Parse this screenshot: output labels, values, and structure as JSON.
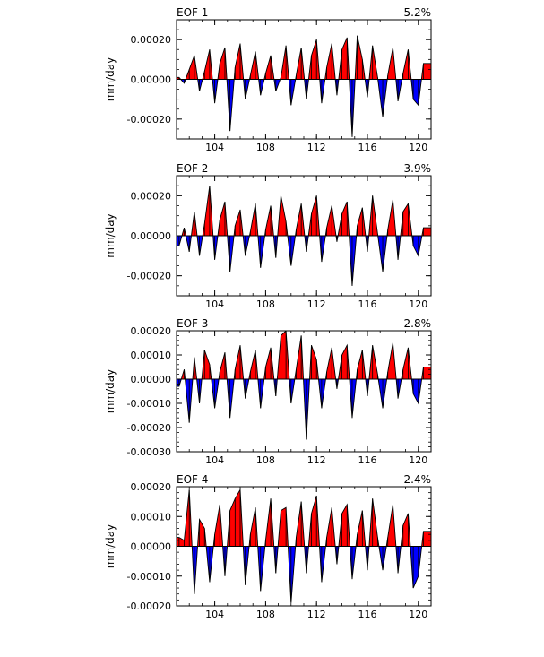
{
  "chart_data": [
    {
      "type": "area",
      "title": "EOF 1",
      "percent_label": "5.2%",
      "ylabel": "mm/day",
      "xlim": [
        101.0,
        121.0
      ],
      "ylim": [
        -0.0003,
        0.0003
      ],
      "x_ticks": [
        104,
        108,
        112,
        116,
        120
      ],
      "y_ticks": [
        "0.00020",
        "0.00000",
        "-0.00020"
      ],
      "y_tick_values": [
        0.0002,
        0.0,
        -0.0002
      ],
      "positive_color": "#ff0000",
      "negative_color": "#0000ff",
      "x": [
        101.2,
        101.6,
        102.0,
        102.4,
        102.8,
        103.2,
        103.6,
        104.0,
        104.4,
        104.8,
        105.2,
        105.6,
        106.0,
        106.4,
        106.8,
        107.2,
        107.6,
        108.0,
        108.4,
        108.8,
        109.2,
        109.6,
        110.0,
        110.4,
        110.8,
        111.2,
        111.6,
        112.0,
        112.4,
        112.8,
        113.2,
        113.6,
        114.0,
        114.4,
        114.8,
        115.2,
        115.6,
        116.0,
        116.4,
        116.8,
        117.2,
        117.6,
        118.0,
        118.4,
        118.8,
        119.2,
        119.6,
        120.0,
        120.4
      ],
      "y": [
        1e-05,
        -2e-05,
        5e-05,
        0.00012,
        -6e-05,
        4e-05,
        0.00015,
        -0.00012,
        8e-05,
        0.00016,
        -0.00026,
        6e-05,
        0.00018,
        -0.0001,
        2e-05,
        0.00014,
        -8e-05,
        3e-05,
        0.00012,
        -6e-05,
        1e-05,
        0.00017,
        -0.00013,
        2e-05,
        0.00016,
        -0.0001,
        0.00012,
        0.0002,
        -0.00012,
        6e-05,
        0.00018,
        -8e-05,
        0.00015,
        0.00021,
        -0.00029,
        0.00022,
        0.0001,
        -9e-05,
        0.00017,
        1e-05,
        -0.00019,
        2e-05,
        0.00016,
        -0.00011,
        3e-05,
        0.00015,
        -0.0001,
        -0.00013,
        8e-05
      ]
    },
    {
      "type": "area",
      "title": "EOF 2",
      "percent_label": "3.9%",
      "ylabel": "mm/day",
      "xlim": [
        101.0,
        121.0
      ],
      "ylim": [
        -0.0003,
        0.0003
      ],
      "x_ticks": [
        104,
        108,
        112,
        116,
        120
      ],
      "y_ticks": [
        "0.00020",
        "0.00000",
        "-0.00020"
      ],
      "y_tick_values": [
        0.0002,
        0.0,
        -0.0002
      ],
      "positive_color": "#ff0000",
      "negative_color": "#0000ff",
      "x": [
        101.2,
        101.6,
        102.0,
        102.4,
        102.8,
        103.2,
        103.6,
        104.0,
        104.4,
        104.8,
        105.2,
        105.6,
        106.0,
        106.4,
        106.8,
        107.2,
        107.6,
        108.0,
        108.4,
        108.8,
        109.2,
        109.6,
        110.0,
        110.4,
        110.8,
        111.2,
        111.6,
        112.0,
        112.4,
        112.8,
        113.2,
        113.6,
        114.0,
        114.4,
        114.8,
        115.2,
        115.6,
        116.0,
        116.4,
        116.8,
        117.2,
        117.6,
        118.0,
        118.4,
        118.8,
        119.2,
        119.6,
        120.0,
        120.4
      ],
      "y": [
        -5e-05,
        4e-05,
        -8e-05,
        0.00012,
        -0.0001,
        6e-05,
        0.00025,
        -0.00012,
        8e-05,
        0.00017,
        -0.00018,
        5e-05,
        0.00013,
        -0.0001,
        2e-05,
        0.00016,
        -0.00016,
        3e-05,
        0.00015,
        -0.00011,
        0.0002,
        7e-05,
        -0.00015,
        3e-05,
        0.00016,
        -8e-05,
        0.00011,
        0.0002,
        -0.00013,
        4e-05,
        0.00015,
        -3e-05,
        0.00011,
        0.00017,
        -0.00025,
        5e-05,
        0.00014,
        -8e-05,
        0.0002,
        1e-05,
        -0.00018,
        3e-05,
        0.00018,
        -0.00012,
        0.00012,
        0.00016,
        -5e-05,
        -0.0001,
        4e-05
      ]
    },
    {
      "type": "area",
      "title": "EOF 3",
      "percent_label": "2.8%",
      "ylabel": "mm/day",
      "xlim": [
        101.0,
        121.0
      ],
      "ylim": [
        -0.0003,
        0.0002
      ],
      "x_ticks": [
        104,
        108,
        112,
        116,
        120
      ],
      "y_ticks": [
        "0.00020",
        "0.00010",
        "0.00000",
        "-0.00010",
        "-0.00020",
        "-0.00030"
      ],
      "y_tick_values": [
        0.0002,
        0.0001,
        0.0,
        -0.0001,
        -0.0002,
        -0.0003
      ],
      "positive_color": "#ff0000",
      "negative_color": "#0000ff",
      "x": [
        101.2,
        101.6,
        102.0,
        102.4,
        102.8,
        103.2,
        103.6,
        104.0,
        104.4,
        104.8,
        105.2,
        105.6,
        106.0,
        106.4,
        106.8,
        107.2,
        107.6,
        108.0,
        108.4,
        108.8,
        109.2,
        109.6,
        110.0,
        110.4,
        110.8,
        111.2,
        111.6,
        112.0,
        112.4,
        112.8,
        113.2,
        113.6,
        114.0,
        114.4,
        114.8,
        115.2,
        115.6,
        116.0,
        116.4,
        116.8,
        117.2,
        117.6,
        118.0,
        118.4,
        118.8,
        119.2,
        119.6,
        120.0,
        120.4
      ],
      "y": [
        -3e-05,
        4e-05,
        -0.00018,
        9e-05,
        -0.0001,
        0.00012,
        6e-05,
        -0.00012,
        3e-05,
        0.00011,
        -0.00016,
        4e-05,
        0.00014,
        -8e-05,
        3e-05,
        0.00012,
        -0.00012,
        5e-05,
        0.00013,
        -7e-05,
        0.00018,
        0.0002,
        -0.0001,
        4e-05,
        0.00018,
        -0.00025,
        0.00014,
        8e-05,
        -0.00012,
        3e-05,
        0.00013,
        -4e-05,
        0.0001,
        0.00014,
        -0.00016,
        4e-05,
        0.00012,
        -7e-05,
        0.00014,
        2e-05,
        -0.00012,
        3e-05,
        0.00015,
        -8e-05,
        4e-05,
        0.00013,
        -6e-05,
        -0.0001,
        5e-05
      ]
    },
    {
      "type": "area",
      "title": "EOF 4",
      "percent_label": "2.4%",
      "ylabel": "mm/day",
      "xlim": [
        101.0,
        121.0
      ],
      "ylim": [
        -0.0002,
        0.0002
      ],
      "x_ticks": [
        104,
        108,
        112,
        116,
        120
      ],
      "y_ticks": [
        "0.00020",
        "0.00010",
        "0.00000",
        "-0.00010",
        "-0.00020"
      ],
      "y_tick_values": [
        0.0002,
        0.0001,
        0.0,
        -0.0001,
        -0.0002
      ],
      "positive_color": "#ff0000",
      "negative_color": "#0000ff",
      "x": [
        101.2,
        101.6,
        102.0,
        102.4,
        102.8,
        103.2,
        103.6,
        104.0,
        104.4,
        104.8,
        105.2,
        105.6,
        106.0,
        106.4,
        106.8,
        107.2,
        107.6,
        108.0,
        108.4,
        108.8,
        109.2,
        109.6,
        110.0,
        110.4,
        110.8,
        111.2,
        111.6,
        112.0,
        112.4,
        112.8,
        113.2,
        113.6,
        114.0,
        114.4,
        114.8,
        115.2,
        115.6,
        116.0,
        116.4,
        116.8,
        117.2,
        117.6,
        118.0,
        118.4,
        118.8,
        119.2,
        119.6,
        120.0,
        120.4
      ],
      "y": [
        3e-05,
        2e-05,
        0.00019,
        -0.00016,
        9e-05,
        6e-05,
        -0.00012,
        4e-05,
        0.00014,
        -0.0001,
        0.00012,
        0.00016,
        0.00019,
        -0.00013,
        4e-05,
        0.00013,
        -0.00015,
        2e-05,
        0.00016,
        -9e-05,
        0.00012,
        0.00013,
        -0.00019,
        3e-05,
        0.00015,
        -9e-05,
        0.00011,
        0.00017,
        -0.00012,
        3e-05,
        0.00013,
        -6e-05,
        0.00011,
        0.00014,
        -0.00011,
        4e-05,
        0.00012,
        -8e-05,
        0.00016,
        3e-05,
        -8e-05,
        3e-05,
        0.00014,
        -9e-05,
        7e-05,
        0.00011,
        -0.00014,
        -0.0001,
        5e-05
      ]
    }
  ]
}
